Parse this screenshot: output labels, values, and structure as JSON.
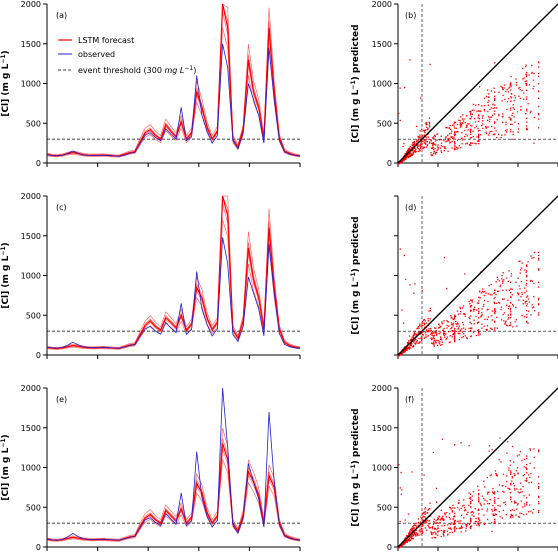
{
  "legend": {
    "lstm": "LSTM forecast",
    "observed": "observed",
    "threshold_text": "event threshold (300",
    "threshold_unit": "mg L",
    "threshold_sup": "−1",
    "threshold_close": ")"
  },
  "colors": {
    "lstm": "#ff0000",
    "observed": "#2020d0",
    "threshold": "#000000",
    "axis": "#000000"
  },
  "chart_data": [
    {
      "panel": "a",
      "label": "(a)",
      "type": "line",
      "ylabel_main": "[Cl] (m g L",
      "ylabel_sup": "−1",
      "ylabel_end": ")",
      "ylim": [
        0,
        2000
      ],
      "yticks": [
        0,
        500,
        1000,
        1500,
        2000
      ],
      "threshold": 300,
      "legend_placement": "top-left",
      "series": [
        {
          "name": "LSTM forecast",
          "values": [
            110,
            95,
            92,
            100,
            118,
            130,
            120,
            105,
            98,
            96,
            98,
            100,
            95,
            90,
            88,
            110,
            130,
            140,
            260,
            380,
            420,
            350,
            300,
            480,
            400,
            330,
            520,
            300,
            380,
            900,
            700,
            450,
            300,
            400,
            2000,
            1700,
            300,
            200,
            420,
            1300,
            900,
            700,
            300,
            1700,
            900,
            320,
            150,
            120,
            100,
            90
          ]
        },
        {
          "name": "observed",
          "values": [
            105,
            92,
            90,
            98,
            122,
            150,
            125,
            100,
            95,
            94,
            96,
            98,
            92,
            88,
            86,
            100,
            120,
            135,
            240,
            350,
            380,
            320,
            280,
            430,
            360,
            300,
            700,
            280,
            340,
            1100,
            600,
            400,
            250,
            350,
            1500,
            1200,
            280,
            180,
            380,
            1000,
            800,
            600,
            250,
            1450,
            800,
            280,
            140,
            110,
            95,
            85
          ]
        }
      ]
    },
    {
      "panel": "b",
      "label": "(b)",
      "type": "scatter",
      "ylabel_main": "[Cl] (m g L",
      "ylabel_sup": "−1",
      "ylabel_end": ") predicted",
      "xlim": [
        0,
        2000
      ],
      "ylim": [
        0,
        2000
      ],
      "yticks": [
        0,
        500,
        1000,
        1500,
        2000
      ],
      "threshold": 300
    },
    {
      "panel": "c",
      "label": "(c)",
      "type": "line",
      "ylabel_main": "[Cl] (m g L",
      "ylabel_sup": "−1",
      "ylabel_end": ")",
      "ylim": [
        0,
        2000
      ],
      "yticks": [
        0,
        500,
        1000,
        1500,
        2000
      ],
      "threshold": 300,
      "series": [
        {
          "name": "LSTM forecast",
          "values": [
            95,
            85,
            82,
            90,
            105,
            118,
            110,
            98,
            92,
            90,
            92,
            95,
            90,
            86,
            84,
            105,
            125,
            135,
            250,
            370,
            430,
            360,
            310,
            470,
            410,
            340,
            500,
            310,
            390,
            850,
            720,
            460,
            320,
            410,
            2000,
            1750,
            320,
            210,
            430,
            1350,
            950,
            720,
            320,
            1600,
            850,
            330,
            160,
            120,
            100,
            90
          ]
        },
        {
          "name": "observed",
          "values": [
            100,
            90,
            88,
            95,
            125,
            160,
            130,
            102,
            95,
            92,
            95,
            98,
            92,
            88,
            86,
            100,
            118,
            130,
            230,
            330,
            360,
            300,
            260,
            410,
            340,
            280,
            650,
            260,
            320,
            1050,
            580,
            380,
            240,
            330,
            1480,
            1150,
            260,
            170,
            360,
            980,
            780,
            580,
            240,
            1400,
            780,
            270,
            135,
            105,
            92,
            82
          ]
        }
      ]
    },
    {
      "panel": "d",
      "label": "(d)",
      "type": "scatter",
      "ylabel_main": "[Cl] (m g L",
      "ylabel_sup": "−1",
      "ylabel_end": ") predicted",
      "xlim": [
        0,
        2000
      ],
      "ylim": [
        0,
        2000
      ],
      "threshold": 300
    },
    {
      "panel": "e",
      "label": "(e)",
      "type": "line",
      "ylabel_main": "[Cl] (m g L",
      "ylabel_sup": "−1",
      "ylabel_end": ")",
      "ylim": [
        0,
        2000
      ],
      "yticks": [
        0,
        500,
        1000,
        1500,
        2000
      ],
      "threshold": 300,
      "series": [
        {
          "name": "LSTM forecast",
          "values": [
            100,
            88,
            85,
            92,
            108,
            122,
            112,
            100,
            94,
            92,
            94,
            96,
            91,
            87,
            85,
            106,
            126,
            136,
            255,
            365,
            410,
            345,
            300,
            460,
            395,
            330,
            480,
            300,
            370,
            800,
            680,
            430,
            300,
            390,
            1300,
            1100,
            300,
            200,
            400,
            950,
            820,
            650,
            300,
            900,
            750,
            310,
            150,
            118,
            98,
            88
          ]
        },
        {
          "name": "observed",
          "values": [
            98,
            88,
            86,
            94,
            130,
            170,
            135,
            104,
            96,
            93,
            96,
            99,
            93,
            89,
            87,
            102,
            119,
            132,
            235,
            340,
            370,
            310,
            270,
            420,
            350,
            290,
            680,
            270,
            330,
            1200,
            620,
            390,
            250,
            340,
            2000,
            1250,
            270,
            175,
            370,
            1050,
            820,
            600,
            250,
            1700,
            820,
            280,
            140,
            108,
            93,
            84
          ]
        }
      ]
    },
    {
      "panel": "f",
      "label": "(f)",
      "type": "scatter",
      "ylabel_main": "[Cl] (m g L",
      "ylabel_sup": "−1",
      "ylabel_end": ") predicted",
      "xlim": [
        0,
        2000
      ],
      "ylim": [
        0,
        2000
      ],
      "yticks": [
        0,
        500,
        1000,
        1500,
        2000
      ],
      "threshold": 300
    }
  ]
}
